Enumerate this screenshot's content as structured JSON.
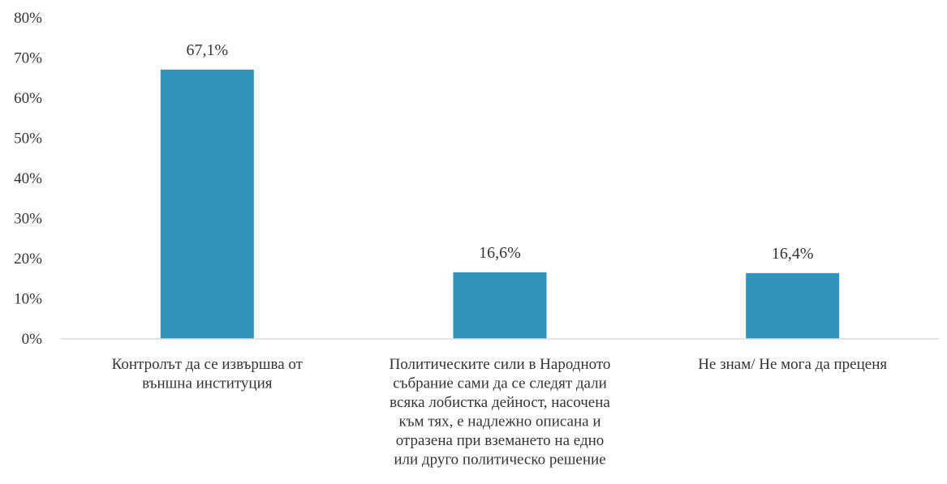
{
  "chart_data": {
    "type": "bar",
    "categories": [
      [
        "Контролът да се извършва от",
        "външна институция"
      ],
      [
        "Политическите сили в Народното",
        "събрание сами да се следят дали",
        "всяка лобистка дейност, насочена",
        "към тях, е надлежно описана и",
        "отразена при вземането на едно",
        "или друго политическо решение"
      ],
      [
        "Не знам/ Не мога да преценя"
      ]
    ],
    "values": [
      67.1,
      16.6,
      16.4
    ],
    "data_labels": [
      "67,1%",
      "16,6%",
      "16,4%"
    ],
    "ylim": [
      0,
      80
    ],
    "y_ticks": [
      0,
      10,
      20,
      30,
      40,
      50,
      60,
      70,
      80
    ],
    "y_tick_labels": [
      "0%",
      "10%",
      "20%",
      "30%",
      "40%",
      "50%",
      "60%",
      "70%",
      "80%"
    ],
    "grid": false,
    "legend": "none",
    "colors": {
      "bar": "#3394BA",
      "axis": "#D9D9D9",
      "text": "#333333"
    }
  }
}
